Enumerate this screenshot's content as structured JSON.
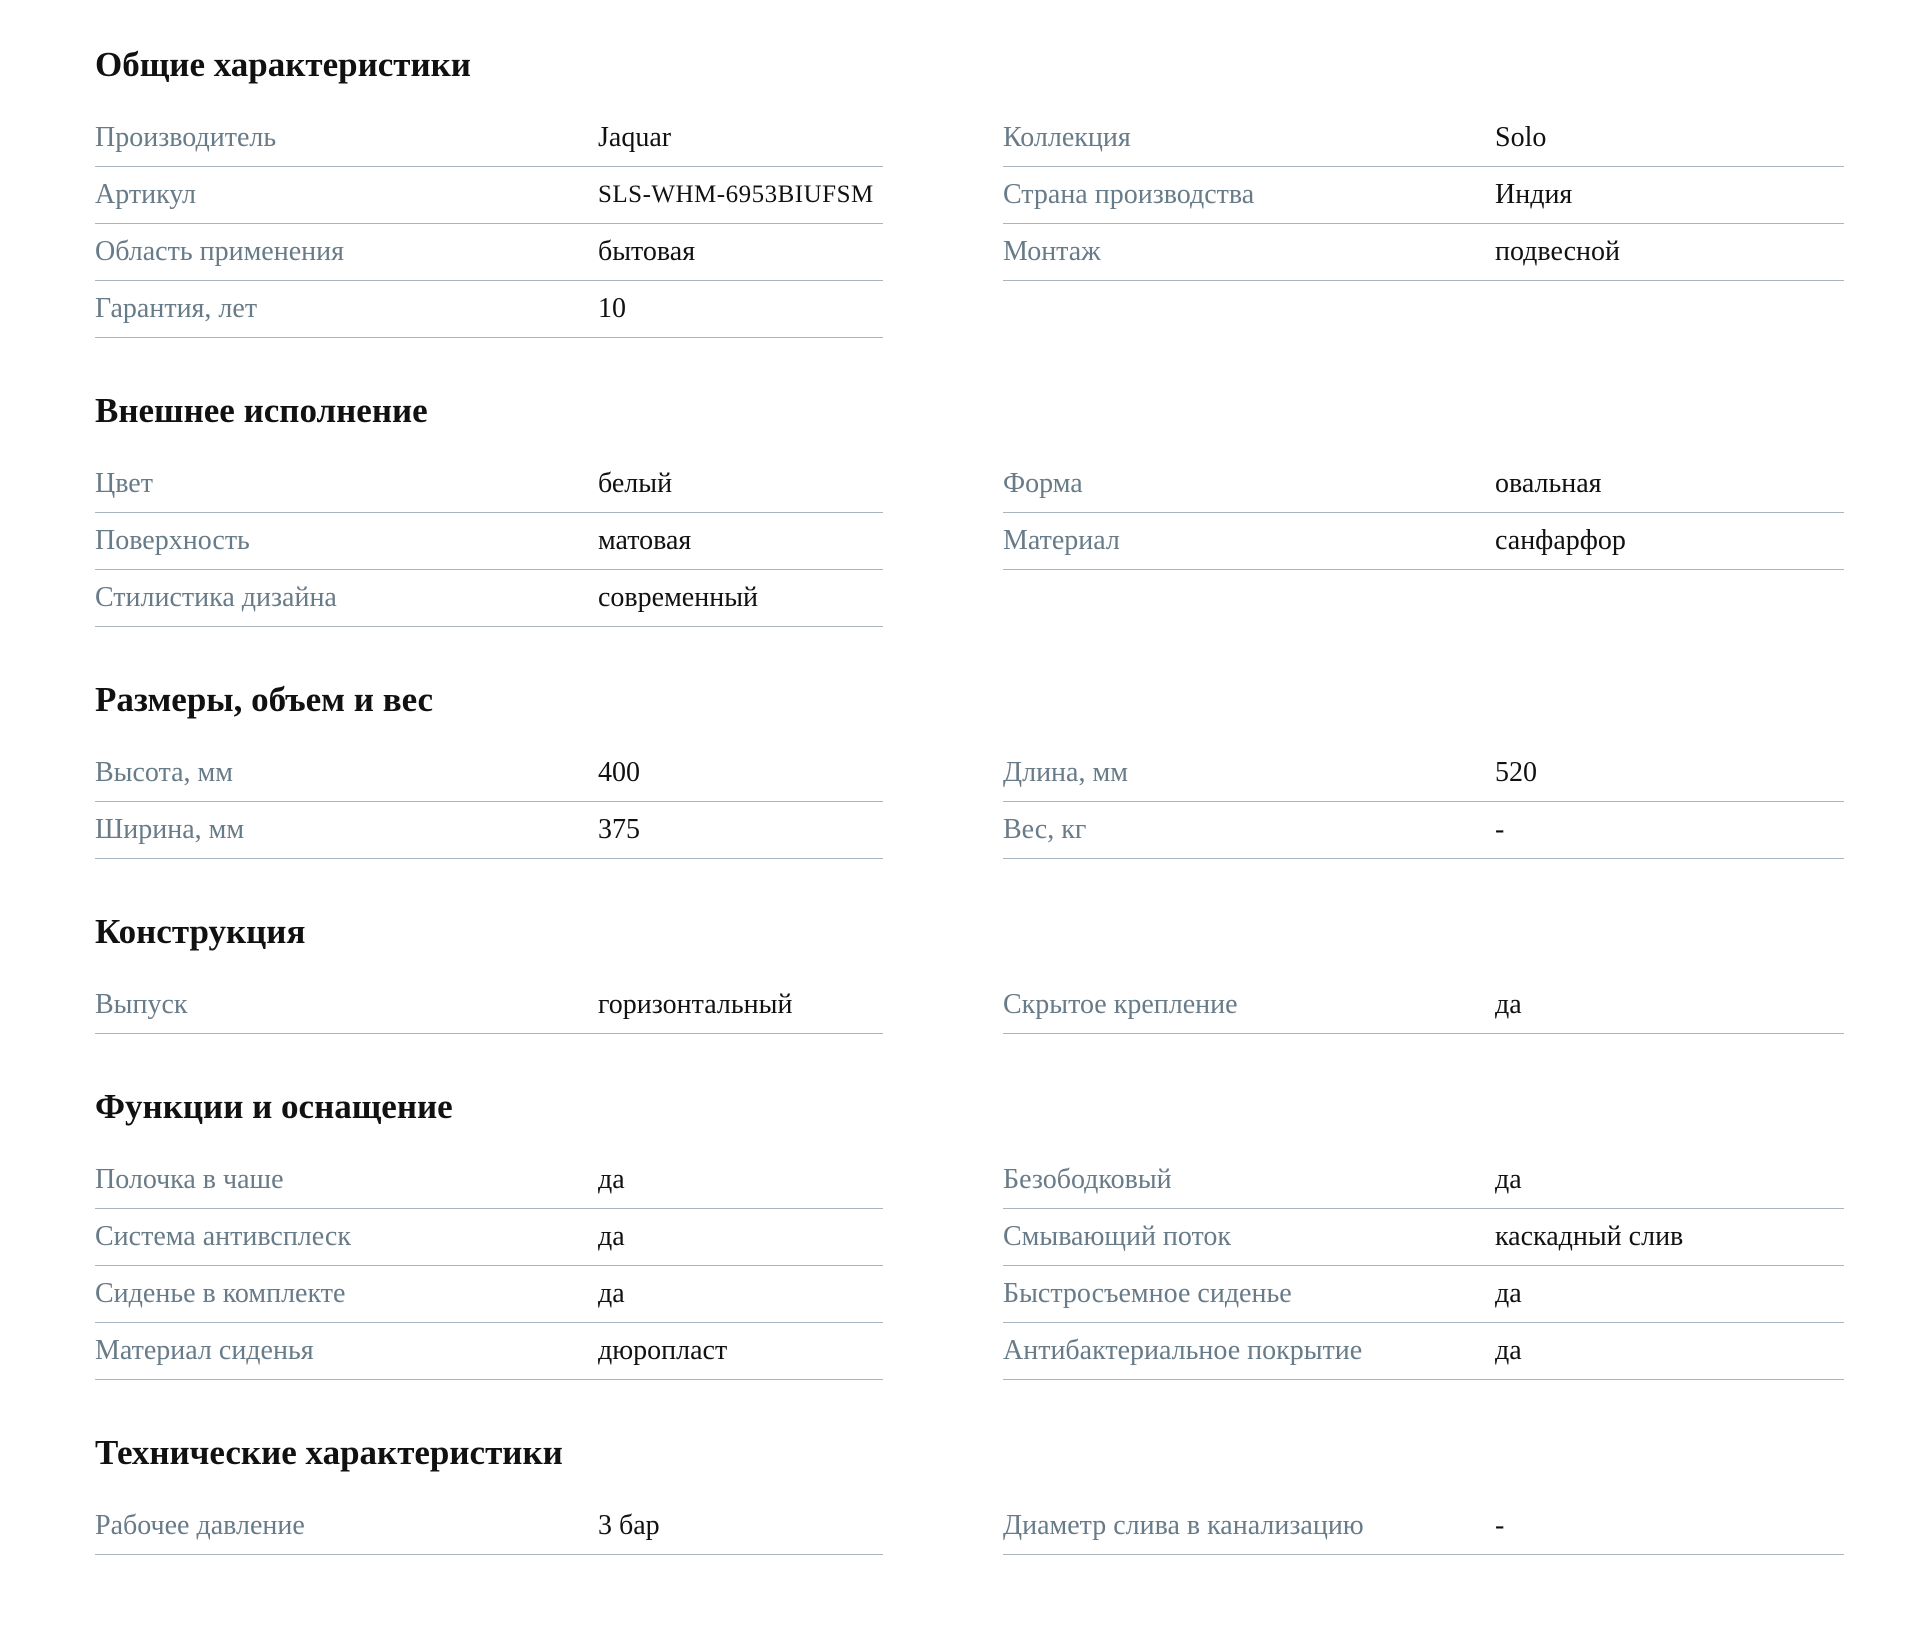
{
  "sections": [
    {
      "title": "Общие характеристики",
      "left": [
        {
          "label": "Производитель",
          "value": "Jaquar"
        },
        {
          "label": "Артикул",
          "value": "SLS-WHM-6953BIUFSM"
        },
        {
          "label": "Область применения",
          "value": "бытовая"
        },
        {
          "label": "Гарантия, лет",
          "value": "10"
        }
      ],
      "right": [
        {
          "label": "Коллекция",
          "value": "Solo"
        },
        {
          "label": "Страна производства",
          "value": "Индия"
        },
        {
          "label": "Монтаж",
          "value": "подвесной"
        }
      ]
    },
    {
      "title": "Внешнее исполнение",
      "left": [
        {
          "label": "Цвет",
          "value": "белый"
        },
        {
          "label": "Поверхность",
          "value": "матовая"
        },
        {
          "label": "Стилистика дизайна",
          "value": "современный"
        }
      ],
      "right": [
        {
          "label": "Форма",
          "value": "овальная"
        },
        {
          "label": "Материал",
          "value": "санфарфор"
        }
      ]
    },
    {
      "title": "Размеры, объем и вес",
      "left": [
        {
          "label": "Высота, мм",
          "value": "400"
        },
        {
          "label": "Ширина, мм",
          "value": "375"
        }
      ],
      "right": [
        {
          "label": "Длина, мм",
          "value": "520"
        },
        {
          "label": "Вес, кг",
          "value": "-"
        }
      ]
    },
    {
      "title": "Конструкция",
      "left": [
        {
          "label": "Выпуск",
          "value": "горизонтальный"
        }
      ],
      "right": [
        {
          "label": "Скрытое крепление",
          "value": "да"
        }
      ]
    },
    {
      "title": "Функции и оснащение",
      "left": [
        {
          "label": "Полочка в чаше",
          "value": "да"
        },
        {
          "label": "Система антивсплеск",
          "value": "да"
        },
        {
          "label": "Сиденье в комплекте",
          "value": "да"
        },
        {
          "label": "Материал сиденья",
          "value": "дюропласт"
        }
      ],
      "right": [
        {
          "label": "Безободковый",
          "value": "да"
        },
        {
          "label": "Смывающий поток",
          "value": "каскадный слив"
        },
        {
          "label": "Быстросъемное сиденье",
          "value": "да"
        },
        {
          "label": "Антибактериальное покрытие",
          "value": "да"
        }
      ]
    },
    {
      "title": "Технические характеристики",
      "left": [
        {
          "label": "Рабочее давление",
          "value": "3 бар"
        }
      ],
      "right": [
        {
          "label": "Диаметр слива в канализацию",
          "value": "-"
        }
      ]
    }
  ]
}
